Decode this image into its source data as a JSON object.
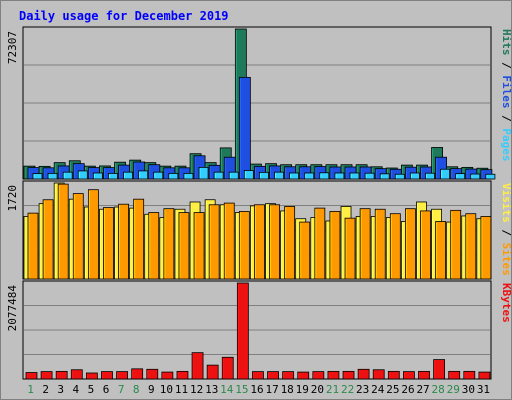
{
  "title": "Daily usage for December 2019",
  "colors": {
    "hits": "#1f7a5c",
    "files": "#1e4fe0",
    "pages": "#33ccff",
    "visits": "#ffee44",
    "sites": "#ff9900",
    "kbytes": "#ee1111",
    "weekend_label": "#2a8a4a",
    "weekday_label": "#000000"
  },
  "chart_data": [
    {
      "type": "bar",
      "name_label": "Hits / Files / Pages",
      "ylabel": [
        "Pages",
        "Files",
        "Hits"
      ],
      "ymax_label": "72307",
      "ylim": [
        0,
        72307
      ],
      "categories": [
        "1",
        "2",
        "3",
        "4",
        "5",
        "6",
        "7",
        "8",
        "9",
        "10",
        "11",
        "12",
        "13",
        "14",
        "15",
        "16",
        "17",
        "18",
        "19",
        "20",
        "21",
        "22",
        "23",
        "24",
        "25",
        "26",
        "27",
        "28",
        "29",
        "30",
        "31"
      ],
      "series": [
        {
          "name": "Hits",
          "values": [
            6200,
            6100,
            7900,
            8800,
            6200,
            6300,
            8100,
            9100,
            7900,
            6200,
            6200,
            12200,
            7900,
            15000,
            72307,
            7200,
            7400,
            6900,
            6900,
            6900,
            6900,
            6900,
            6900,
            5900,
            5300,
            6700,
            6700,
            15200,
            5900,
            5600,
            5200
          ]
        },
        {
          "name": "Files",
          "values": [
            5500,
            5400,
            6300,
            7400,
            5500,
            5500,
            6700,
            8200,
            6900,
            5400,
            5400,
            11200,
            6600,
            10500,
            49000,
            6100,
            6300,
            5900,
            5900,
            6000,
            5800,
            5800,
            5800,
            5000,
            4700,
            5700,
            5800,
            10500,
            5000,
            4800,
            4500
          ]
        },
        {
          "name": "Pages",
          "values": [
            2600,
            2700,
            3300,
            3900,
            2900,
            2700,
            3300,
            3900,
            3300,
            2700,
            2700,
            5600,
            3300,
            3300,
            4100,
            3200,
            3300,
            2900,
            2900,
            3000,
            2900,
            2900,
            2800,
            2500,
            2300,
            2900,
            2800,
            4700,
            2600,
            2400,
            2300
          ]
        }
      ]
    },
    {
      "type": "bar",
      "name_label": "Sites / Visits",
      "ylabel": [
        "Sites",
        "Visits"
      ],
      "ymax_label": "1720",
      "ylim": [
        0,
        1720
      ],
      "categories": [
        "1",
        "2",
        "3",
        "4",
        "5",
        "6",
        "7",
        "8",
        "9",
        "10",
        "11",
        "12",
        "13",
        "14",
        "15",
        "16",
        "17",
        "18",
        "19",
        "20",
        "21",
        "22",
        "23",
        "24",
        "25",
        "26",
        "27",
        "28",
        "29",
        "30",
        "31"
      ],
      "series": [
        {
          "name": "Visits",
          "values": [
            1120,
            1350,
            1720,
            1430,
            1290,
            1250,
            1290,
            1270,
            1160,
            1100,
            1250,
            1380,
            1420,
            1330,
            1190,
            1310,
            1350,
            1220,
            1080,
            1100,
            1040,
            1300,
            1120,
            1120,
            1100,
            1030,
            1380,
            1250,
            1020,
            1130,
            1080
          ]
        },
        {
          "name": "Sites",
          "values": [
            1180,
            1420,
            1700,
            1530,
            1600,
            1280,
            1340,
            1430,
            1190,
            1260,
            1190,
            1190,
            1330,
            1360,
            1210,
            1330,
            1330,
            1300,
            1020,
            1270,
            1210,
            1090,
            1260,
            1250,
            1170,
            1260,
            1220,
            1030,
            1230,
            1170,
            1120
          ]
        }
      ]
    },
    {
      "type": "bar",
      "name_label": "KBytes",
      "ylabel": [
        "KBytes"
      ],
      "ymax_label": "2077484",
      "ylim": [
        0,
        2077484
      ],
      "categories": [
        "1",
        "2",
        "3",
        "4",
        "5",
        "6",
        "7",
        "8",
        "9",
        "10",
        "11",
        "12",
        "13",
        "14",
        "15",
        "16",
        "17",
        "18",
        "19",
        "20",
        "21",
        "22",
        "23",
        "24",
        "25",
        "26",
        "27",
        "28",
        "29",
        "30",
        "31"
      ],
      "series": [
        {
          "name": "KBytes",
          "values": [
            140000,
            160000,
            165000,
            200000,
            130000,
            160000,
            160000,
            220000,
            210000,
            150000,
            165000,
            570000,
            300000,
            470000,
            2077484,
            160000,
            160000,
            160000,
            150000,
            160000,
            165000,
            165000,
            210000,
            200000,
            165000,
            160000,
            165000,
            420000,
            165000,
            165000,
            150000
          ]
        }
      ]
    }
  ],
  "weekend_days": [
    "1",
    "7",
    "8",
    "14",
    "15",
    "21",
    "22",
    "28",
    "29"
  ]
}
